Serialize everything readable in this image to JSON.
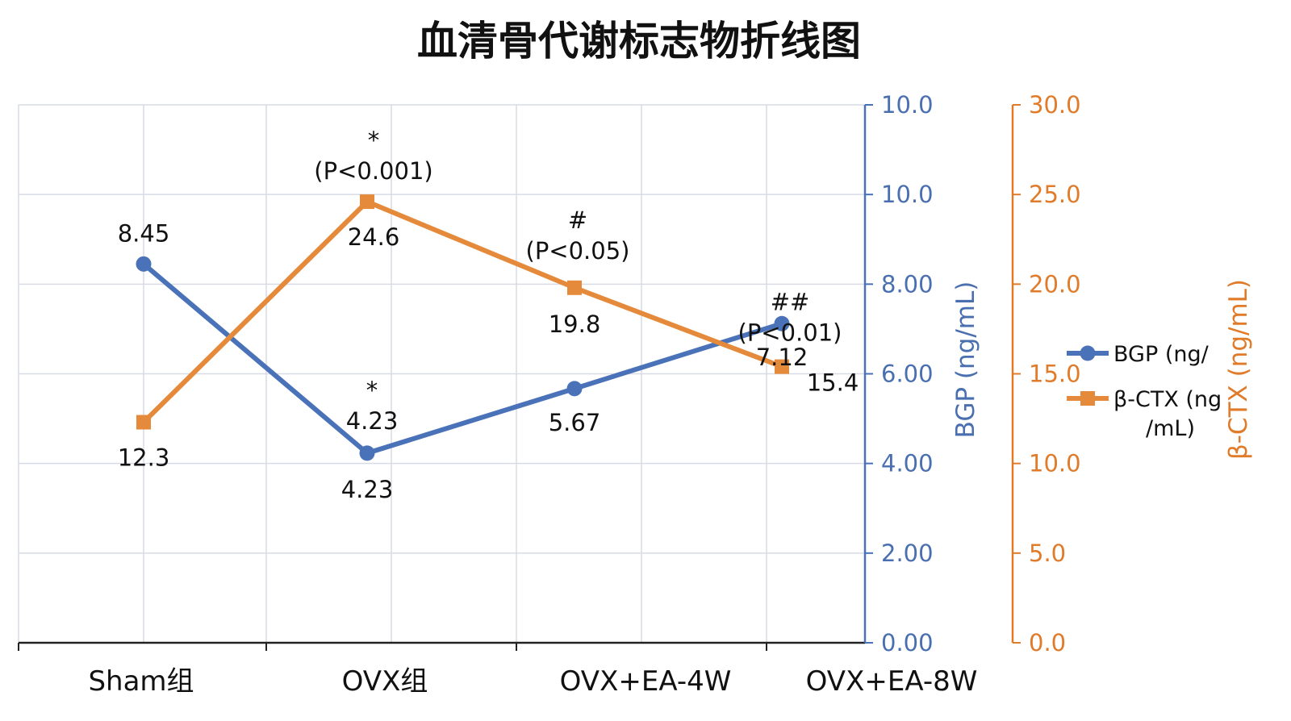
{
  "chart_data": {
    "type": "line",
    "title": "血清骨代谢标志物折线图",
    "categories": [
      "Sham组",
      "OVX组",
      "OVX+EA-4W",
      "OVX+EA-8W"
    ],
    "series": [
      {
        "name": "BGP (ng/",
        "axis": "left",
        "color": "#4a72b8",
        "marker": "circle",
        "values": [
          8.45,
          4.23,
          5.67,
          7.12
        ],
        "data_labels": [
          "8.45",
          "4.23",
          "5.67",
          "7.12"
        ]
      },
      {
        "name": "β-CTX (ng /mL)",
        "axis": "right",
        "color": "#e58a3a",
        "marker": "square",
        "values": [
          12.3,
          24.6,
          19.8,
          15.4
        ],
        "data_labels": [
          "12.3",
          "24.6",
          "19.8",
          "15.4"
        ]
      }
    ],
    "legend": {
      "position": "right",
      "entries": [
        {
          "series": 0,
          "lines": [
            "BGP (ng/"
          ]
        },
        {
          "series": 1,
          "lines": [
            "β-CTX (ng",
            "/mL)"
          ]
        }
      ]
    },
    "y_left": {
      "label": "BGP (ng/mL)",
      "ticks": [
        "0.00",
        "2.00",
        "4.00",
        "6.00",
        "8.00",
        "10.0",
        "10.0"
      ]
    },
    "y_right": {
      "label": "β-CTX (ng/mL)",
      "ticks": [
        "0.0",
        "5.0",
        "10.0",
        "15.0",
        "20.0",
        "25.0",
        "30.0"
      ],
      "ylim": [
        0,
        30
      ]
    },
    "annotations": [
      {
        "category": 1,
        "series": 1,
        "lines": [
          "*",
          "(P<0.001)"
        ]
      },
      {
        "category": 2,
        "series": 1,
        "lines": [
          "#",
          "(P<0.05)"
        ]
      },
      {
        "category": 3,
        "series": 1,
        "lines": [
          "##",
          "(P<0.01)"
        ]
      },
      {
        "category": 1,
        "series": 0,
        "lines": [
          "*",
          "4.23"
        ]
      }
    ],
    "grid": true
  }
}
